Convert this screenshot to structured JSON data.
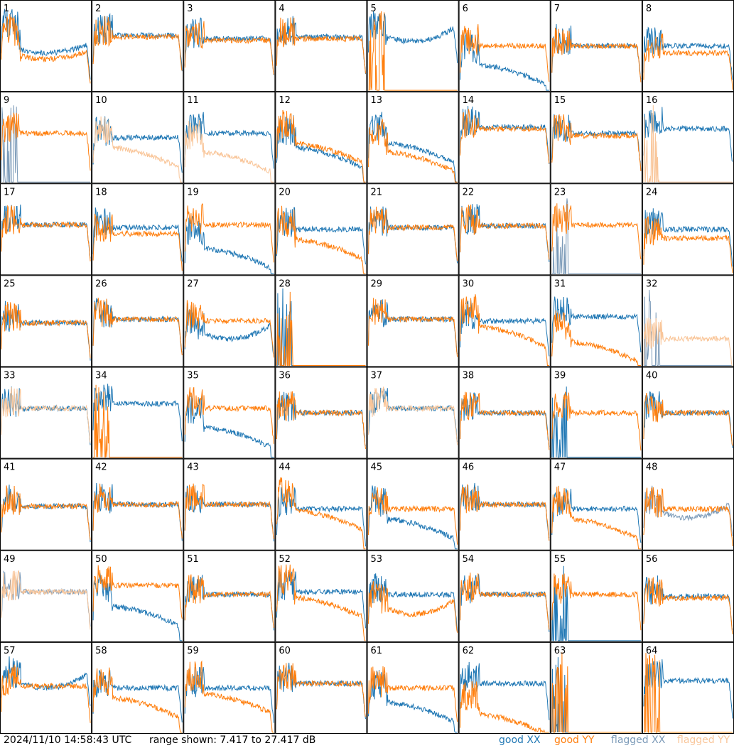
{
  "footer": {
    "timestamp": "2024/11/10 14:58:43 UTC",
    "range_text": "range shown: 7.417 to 27.417 dB"
  },
  "legend": [
    {
      "name": "good XX",
      "label": "good",
      "code": "XX",
      "color": "#1f77b4"
    },
    {
      "name": "good YY",
      "label": "good",
      "code": "YY",
      "color": "#ff7f0e"
    },
    {
      "name": "flagged XX",
      "label": "flagged",
      "code": "XX",
      "color": "#7b9ab8"
    },
    {
      "name": "flagged YY",
      "label": "flagged",
      "code": "YY",
      "color": "#f9c69a"
    }
  ],
  "chart_data": {
    "type": "line",
    "layout": "grid 8x8 small multiples",
    "range_db": [
      7.417,
      27.417
    ],
    "panels": [
      {
        "id": "1",
        "xx": {
          "state": "good",
          "level": 0.52,
          "shape": "dip"
        },
        "yy": {
          "state": "good",
          "level": 0.45,
          "shape": "dip"
        }
      },
      {
        "id": "2",
        "xx": {
          "state": "good",
          "level": 0.62
        },
        "yy": {
          "state": "good",
          "level": 0.6
        }
      },
      {
        "id": "3",
        "xx": {
          "state": "good",
          "level": 0.58
        },
        "yy": {
          "state": "good",
          "level": 0.56
        }
      },
      {
        "id": "4",
        "xx": {
          "state": "good",
          "level": 0.6
        },
        "yy": {
          "state": "good",
          "level": 0.58
        }
      },
      {
        "id": "5",
        "xx": {
          "state": "good",
          "level": 0.55,
          "shape": "bowl"
        },
        "yy": {
          "state": "good",
          "level": 0.0,
          "shape": "spikes"
        }
      },
      {
        "id": "6",
        "xx": {
          "state": "good",
          "level": 0.3,
          "shape": "droop"
        },
        "yy": {
          "state": "good",
          "level": 0.5
        }
      },
      {
        "id": "7",
        "xx": {
          "state": "good",
          "level": 0.5
        },
        "yy": {
          "state": "good",
          "level": 0.5
        }
      },
      {
        "id": "8",
        "xx": {
          "state": "good",
          "level": 0.5
        },
        "yy": {
          "state": "good",
          "level": 0.42
        }
      },
      {
        "id": "9",
        "xx": {
          "state": "flagged",
          "level": 0.0,
          "shape": "spikes"
        },
        "yy": {
          "state": "good",
          "level": 0.55
        }
      },
      {
        "id": "10",
        "xx": {
          "state": "good",
          "level": 0.5
        },
        "yy": {
          "state": "flagged",
          "level": 0.4,
          "shape": "droop"
        }
      },
      {
        "id": "11",
        "xx": {
          "state": "good",
          "level": 0.55
        },
        "yy": {
          "state": "flagged",
          "level": 0.35,
          "shape": "droop"
        }
      },
      {
        "id": "12",
        "xx": {
          "state": "good",
          "level": 0.4,
          "shape": "droop"
        },
        "yy": {
          "state": "good",
          "level": 0.45,
          "shape": "droop"
        }
      },
      {
        "id": "13",
        "xx": {
          "state": "good",
          "level": 0.45,
          "shape": "droop"
        },
        "yy": {
          "state": "good",
          "level": 0.35,
          "shape": "droop"
        }
      },
      {
        "id": "14",
        "xx": {
          "state": "good",
          "level": 0.62
        },
        "yy": {
          "state": "good",
          "level": 0.6
        }
      },
      {
        "id": "15",
        "xx": {
          "state": "good",
          "level": 0.55
        },
        "yy": {
          "state": "good",
          "level": 0.52
        }
      },
      {
        "id": "16",
        "xx": {
          "state": "good",
          "level": 0.6
        },
        "yy": {
          "state": "flagged",
          "level": 0.0,
          "shape": "spikes"
        }
      },
      {
        "id": "17",
        "xx": {
          "state": "good",
          "level": 0.55
        },
        "yy": {
          "state": "good",
          "level": 0.55
        }
      },
      {
        "id": "18",
        "xx": {
          "state": "good",
          "level": 0.52
        },
        "yy": {
          "state": "good",
          "level": 0.45
        }
      },
      {
        "id": "19",
        "xx": {
          "state": "good",
          "level": 0.3,
          "shape": "droop"
        },
        "yy": {
          "state": "good",
          "level": 0.55
        }
      },
      {
        "id": "20",
        "xx": {
          "state": "good",
          "level": 0.5
        },
        "yy": {
          "state": "good",
          "level": 0.4,
          "shape": "droop"
        }
      },
      {
        "id": "21",
        "xx": {
          "state": "good",
          "level": 0.52
        },
        "yy": {
          "state": "good",
          "level": 0.52
        }
      },
      {
        "id": "22",
        "xx": {
          "state": "good",
          "level": 0.54
        },
        "yy": {
          "state": "good",
          "level": 0.54
        }
      },
      {
        "id": "23",
        "xx": {
          "state": "flagged",
          "level": 0.25,
          "shape": "spikes"
        },
        "yy": {
          "state": "good",
          "level": 0.55
        }
      },
      {
        "id": "24",
        "xx": {
          "state": "good",
          "level": 0.5
        },
        "yy": {
          "state": "good",
          "level": 0.4
        }
      },
      {
        "id": "25",
        "xx": {
          "state": "good",
          "level": 0.48
        },
        "yy": {
          "state": "good",
          "level": 0.48
        }
      },
      {
        "id": "26",
        "xx": {
          "state": "good",
          "level": 0.52
        },
        "yy": {
          "state": "good",
          "level": 0.52
        }
      },
      {
        "id": "27",
        "xx": {
          "state": "good",
          "level": 0.3,
          "shape": "bowl"
        },
        "yy": {
          "state": "good",
          "level": 0.5
        }
      },
      {
        "id": "28",
        "xx": {
          "state": "good",
          "level": 0.0,
          "shape": "spikes"
        },
        "yy": {
          "state": "good",
          "level": 0.0,
          "shape": "spikes"
        }
      },
      {
        "id": "29",
        "xx": {
          "state": "good",
          "level": 0.52
        },
        "yy": {
          "state": "good",
          "level": 0.52
        }
      },
      {
        "id": "30",
        "xx": {
          "state": "good",
          "level": 0.5
        },
        "yy": {
          "state": "good",
          "level": 0.45,
          "shape": "droop"
        }
      },
      {
        "id": "31",
        "xx": {
          "state": "good",
          "level": 0.55
        },
        "yy": {
          "state": "good",
          "level": 0.28,
          "shape": "droop"
        }
      },
      {
        "id": "32",
        "xx": {
          "state": "flagged",
          "level": 0.0,
          "shape": "spikes"
        },
        "yy": {
          "state": "flagged",
          "level": 0.3
        }
      },
      {
        "id": "33",
        "xx": {
          "state": "good",
          "level": 0.55
        },
        "yy": {
          "state": "flagged",
          "level": 0.55
        }
      },
      {
        "id": "34",
        "xx": {
          "state": "good",
          "level": 0.6
        },
        "yy": {
          "state": "good",
          "level": 0.0,
          "shape": "spikes"
        }
      },
      {
        "id": "35",
        "xx": {
          "state": "good",
          "level": 0.35,
          "shape": "droop"
        },
        "yy": {
          "state": "good",
          "level": 0.55
        }
      },
      {
        "id": "36",
        "xx": {
          "state": "good",
          "level": 0.5
        },
        "yy": {
          "state": "good",
          "level": 0.5
        }
      },
      {
        "id": "37",
        "xx": {
          "state": "good",
          "level": 0.55
        },
        "yy": {
          "state": "flagged",
          "level": 0.55
        }
      },
      {
        "id": "38",
        "xx": {
          "state": "good",
          "level": 0.5
        },
        "yy": {
          "state": "good",
          "level": 0.5
        }
      },
      {
        "id": "39",
        "xx": {
          "state": "good",
          "level": 0.0,
          "shape": "spikes"
        },
        "yy": {
          "state": "good",
          "level": 0.5
        }
      },
      {
        "id": "40",
        "xx": {
          "state": "good",
          "level": 0.5
        },
        "yy": {
          "state": "good",
          "level": 0.5
        }
      },
      {
        "id": "41",
        "xx": {
          "state": "good",
          "level": 0.48
        },
        "yy": {
          "state": "good",
          "level": 0.48
        }
      },
      {
        "id": "42",
        "xx": {
          "state": "good",
          "level": 0.5
        },
        "yy": {
          "state": "good",
          "level": 0.5
        }
      },
      {
        "id": "43",
        "xx": {
          "state": "good",
          "level": 0.5
        },
        "yy": {
          "state": "good",
          "level": 0.5
        }
      },
      {
        "id": "44",
        "xx": {
          "state": "good",
          "level": 0.45
        },
        "yy": {
          "state": "good",
          "level": 0.45,
          "shape": "droop"
        }
      },
      {
        "id": "45",
        "xx": {
          "state": "good",
          "level": 0.35,
          "shape": "droop"
        },
        "yy": {
          "state": "good",
          "level": 0.45
        }
      },
      {
        "id": "46",
        "xx": {
          "state": "good",
          "level": 0.5
        },
        "yy": {
          "state": "good",
          "level": 0.5
        }
      },
      {
        "id": "47",
        "xx": {
          "state": "good",
          "level": 0.45
        },
        "yy": {
          "state": "good",
          "level": 0.35,
          "shape": "droop"
        }
      },
      {
        "id": "48",
        "xx": {
          "state": "flagged",
          "level": 0.35,
          "shape": "bowl"
        },
        "yy": {
          "state": "good",
          "level": 0.45
        }
      },
      {
        "id": "49",
        "xx": {
          "state": "flagged",
          "level": 0.55
        },
        "yy": {
          "state": "flagged",
          "level": 0.55
        }
      },
      {
        "id": "50",
        "xx": {
          "state": "good",
          "level": 0.4,
          "shape": "droop"
        },
        "yy": {
          "state": "good",
          "level": 0.62
        }
      },
      {
        "id": "51",
        "xx": {
          "state": "good",
          "level": 0.52
        },
        "yy": {
          "state": "good",
          "level": 0.52
        }
      },
      {
        "id": "52",
        "xx": {
          "state": "good",
          "level": 0.55
        },
        "yy": {
          "state": "good",
          "level": 0.5,
          "shape": "droop"
        }
      },
      {
        "id": "53",
        "xx": {
          "state": "good",
          "level": 0.52
        },
        "yy": {
          "state": "good",
          "level": 0.3,
          "shape": "bowl"
        }
      },
      {
        "id": "54",
        "xx": {
          "state": "good",
          "level": 0.52
        },
        "yy": {
          "state": "good",
          "level": 0.52
        }
      },
      {
        "id": "55",
        "xx": {
          "state": "good",
          "level": 0.0,
          "shape": "spikes"
        },
        "yy": {
          "state": "good",
          "level": 0.52
        }
      },
      {
        "id": "56",
        "xx": {
          "state": "good",
          "level": 0.5
        },
        "yy": {
          "state": "good",
          "level": 0.48
        }
      },
      {
        "id": "57",
        "xx": {
          "state": "good",
          "level": 0.5,
          "shape": "bowl"
        },
        "yy": {
          "state": "good",
          "level": 0.52
        }
      },
      {
        "id": "58",
        "xx": {
          "state": "good",
          "level": 0.5
        },
        "yy": {
          "state": "good",
          "level": 0.4,
          "shape": "droop"
        }
      },
      {
        "id": "59",
        "xx": {
          "state": "good",
          "level": 0.5
        },
        "yy": {
          "state": "good",
          "level": 0.45,
          "shape": "droop"
        }
      },
      {
        "id": "60",
        "xx": {
          "state": "good",
          "level": 0.55
        },
        "yy": {
          "state": "good",
          "level": 0.55
        }
      },
      {
        "id": "61",
        "xx": {
          "state": "good",
          "level": 0.35,
          "shape": "droop"
        },
        "yy": {
          "state": "good",
          "level": 0.5
        }
      },
      {
        "id": "62",
        "xx": {
          "state": "good",
          "level": 0.55
        },
        "yy": {
          "state": "good",
          "level": 0.22,
          "shape": "droop"
        }
      },
      {
        "id": "63",
        "xx": {
          "state": "good",
          "level": 0.0,
          "shape": "spikes"
        },
        "yy": {
          "state": "good",
          "level": 0.0,
          "shape": "spikes"
        }
      },
      {
        "id": "64",
        "xx": {
          "state": "good",
          "level": 0.58
        },
        "yy": {
          "state": "good",
          "level": 0.0,
          "shape": "spikes"
        }
      }
    ]
  }
}
